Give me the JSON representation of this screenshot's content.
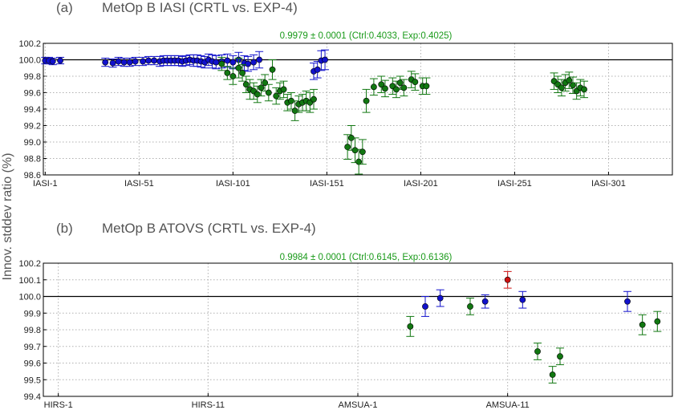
{
  "ylabel": "Innov. stddev ratio (%)",
  "colors": {
    "blue": "#1111cc",
    "green": "#117711",
    "red": "#cc1111",
    "summary": "#1a9a1a"
  },
  "chart_data": [
    {
      "type": "scatter",
      "panel_label": "(a)",
      "title": "MetOp B IASI (CRTL vs. EXP-4)",
      "summary": "0.9979 ± 0.0001  (Ctrl:0.4033, Exp:0.4025)",
      "ylabel": "Innov. stddev ratio (%)",
      "ylim": [
        98.6,
        100.2
      ],
      "yticks": [
        "100.2",
        "100.0",
        "99.8",
        "99.6",
        "99.4",
        "99.2",
        "99.0",
        "98.8",
        "98.6"
      ],
      "xlim": [
        0,
        335
      ],
      "xtick_positions": [
        1,
        51,
        101,
        151,
        201,
        251,
        301
      ],
      "xtick_labels": [
        "IASI-1",
        "IASI-51",
        "IASI-101",
        "IASI-151",
        "IASI-201",
        "IASI-251",
        "IASI-301"
      ],
      "grid": true,
      "reference_line": 100.0,
      "series": [
        {
          "color": "blue",
          "x": [
            1,
            3,
            5,
            9,
            33,
            37,
            40,
            43,
            46,
            49,
            53,
            56,
            59,
            62,
            64,
            66,
            68,
            70,
            72,
            74,
            76,
            78,
            80,
            82,
            84,
            86,
            88,
            90,
            92,
            95,
            98,
            101,
            104,
            107,
            109,
            112,
            115,
            144,
            146,
            148,
            150
          ],
          "y": [
            99.99,
            99.99,
            99.98,
            99.99,
            99.97,
            99.96,
            99.98,
            99.97,
            99.97,
            99.98,
            99.98,
            99.99,
            99.99,
            99.98,
            99.99,
            99.99,
            99.99,
            99.99,
            99.99,
            99.98,
            99.99,
            100.0,
            99.99,
            99.99,
            99.98,
            99.97,
            100.0,
            99.98,
            99.97,
            99.98,
            99.99,
            99.97,
            100.0,
            99.96,
            99.95,
            99.97,
            100.0,
            99.86,
            99.88,
            99.99,
            100.0
          ],
          "err": [
            0.04,
            0.04,
            0.04,
            0.04,
            0.05,
            0.05,
            0.05,
            0.05,
            0.05,
            0.05,
            0.05,
            0.05,
            0.05,
            0.06,
            0.06,
            0.06,
            0.06,
            0.06,
            0.06,
            0.06,
            0.06,
            0.06,
            0.07,
            0.07,
            0.07,
            0.07,
            0.07,
            0.08,
            0.08,
            0.08,
            0.08,
            0.08,
            0.09,
            0.09,
            0.09,
            0.09,
            0.1,
            0.1,
            0.1,
            0.12,
            0.12
          ]
        },
        {
          "color": "green",
          "x": [
            95,
            98,
            101,
            104,
            106,
            108,
            110,
            112,
            114,
            116,
            118,
            120,
            122,
            124,
            126,
            128,
            130,
            132,
            134,
            136,
            138,
            140,
            142,
            144,
            162,
            164,
            166,
            168,
            170,
            172,
            176,
            180,
            182,
            186,
            188,
            190,
            192,
            196,
            198,
            202,
            204,
            272,
            274,
            276,
            278,
            280,
            282,
            284,
            286,
            288
          ],
          "y": [
            99.95,
            99.84,
            99.8,
            99.9,
            99.84,
            99.7,
            99.64,
            99.62,
            99.58,
            99.66,
            99.72,
            99.6,
            99.88,
            99.56,
            99.62,
            99.64,
            99.48,
            99.5,
            99.38,
            99.46,
            99.48,
            99.5,
            99.48,
            99.52,
            98.94,
            99.05,
            98.9,
            98.76,
            98.88,
            99.5,
            99.67,
            99.7,
            99.65,
            99.68,
            99.64,
            99.72,
            99.66,
            99.76,
            99.73,
            99.68,
            99.68,
            99.74,
            99.7,
            99.66,
            99.72,
            99.75,
            99.69,
            99.62,
            99.66,
            99.64
          ],
          "err": [
            0.08,
            0.08,
            0.1,
            0.12,
            0.1,
            0.1,
            0.12,
            0.1,
            0.1,
            0.1,
            0.1,
            0.1,
            0.12,
            0.1,
            0.1,
            0.1,
            0.1,
            0.1,
            0.12,
            0.1,
            0.1,
            0.12,
            0.12,
            0.12,
            0.15,
            0.15,
            0.15,
            0.15,
            0.15,
            0.14,
            0.1,
            0.1,
            0.1,
            0.1,
            0.1,
            0.08,
            0.1,
            0.1,
            0.1,
            0.1,
            0.1,
            0.1,
            0.1,
            0.1,
            0.1,
            0.1,
            0.1,
            0.1,
            0.1,
            0.1
          ]
        }
      ]
    },
    {
      "type": "scatter",
      "panel_label": "(b)",
      "title": "MetOp B ATOVS (CRTL vs. EXP-4)",
      "summary": "0.9984 ± 0.0001  (Ctrl:0.6145, Exp:0.6136)",
      "ylabel": "Innov. stddev ratio (%)",
      "ylim": [
        99.4,
        100.2
      ],
      "yticks": [
        "100.2",
        "100.1",
        "100.0",
        "99.9",
        "99.8",
        "99.7",
        "99.6",
        "99.5",
        "99.4"
      ],
      "xlim": [
        0,
        42
      ],
      "xtick_positions": [
        1,
        11,
        21,
        31
      ],
      "xtick_labels": [
        "HIRS-1",
        "HIRS-11",
        "AMSUA-1",
        "AMSUA-11"
      ],
      "grid": true,
      "reference_line": 100.0,
      "series": [
        {
          "color": "blue",
          "x": [
            25.5,
            26.5,
            29.5,
            32,
            39
          ],
          "y": [
            99.94,
            99.99,
            99.97,
            99.98,
            99.97
          ],
          "err": [
            0.06,
            0.05,
            0.04,
            0.05,
            0.06
          ]
        },
        {
          "color": "green",
          "x": [
            24.5,
            28.5,
            33,
            34,
            34.5,
            40,
            41
          ],
          "y": [
            99.82,
            99.94,
            99.67,
            99.53,
            99.64,
            99.83,
            99.85
          ],
          "err": [
            0.06,
            0.05,
            0.05,
            0.05,
            0.05,
            0.06,
            0.06
          ]
        },
        {
          "color": "red",
          "x": [
            31
          ],
          "y": [
            100.1
          ],
          "err": [
            0.05
          ]
        }
      ]
    }
  ]
}
